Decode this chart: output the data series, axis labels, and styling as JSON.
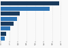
{
  "values": [
    34000,
    28500,
    11000,
    9500,
    7500,
    5500,
    3200,
    2500
  ],
  "colors": [
    "#1a3a5c",
    "#2e75b6",
    "#1a3a5c",
    "#2e75b6",
    "#1a3a5c",
    "#2e75b6",
    "#1a3a5c",
    "#2e75b6"
  ],
  "background_color": "#f9f9f9",
  "xlim": [
    0,
    38000
  ],
  "grid_color": "#dddddd",
  "tick_color": "#555555"
}
